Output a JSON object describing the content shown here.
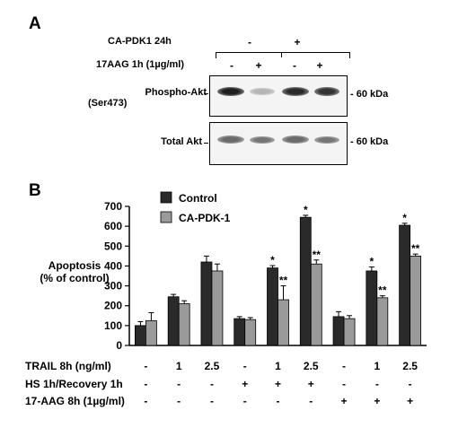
{
  "panel_a": {
    "letter": "A",
    "row1": {
      "label": "CA-PDK1 24h",
      "groups": [
        "-",
        "+"
      ]
    },
    "row2": {
      "label": "17AAG 1h (1µg/ml)",
      "values": [
        "-",
        "+",
        "-",
        "+"
      ]
    },
    "blots": [
      {
        "label_line1": "Phospho-Akt",
        "label_line2": "(Ser473)",
        "marker": "- 60 kDa",
        "band_intensity": [
          0.95,
          0.25,
          0.9,
          0.85
        ]
      },
      {
        "label_line1": "Total Akt",
        "label_line2": "",
        "marker": "- 60 kDa",
        "band_intensity": [
          0.6,
          0.55,
          0.6,
          0.55
        ]
      }
    ]
  },
  "panel_b": {
    "letter": "B",
    "colors": {
      "control": "#2a2a2a",
      "ca_pdk1": "#9a9a9a"
    },
    "treatments": [
      {
        "label": "TRAIL 8h (ng/ml)",
        "values": [
          "-",
          "1",
          "2.5",
          "-",
          "1",
          "2.5",
          "-",
          "1",
          "2.5"
        ]
      },
      {
        "label": "HS 1h/Recovery 1h",
        "values": [
          "-",
          "-",
          "-",
          "+",
          "+",
          "+",
          "-",
          "-",
          "-"
        ]
      },
      {
        "label": "17-AAG 8h (1µg/ml)",
        "values": [
          "-",
          "-",
          "-",
          "-",
          "-",
          "-",
          "+",
          "+",
          "+"
        ]
      }
    ]
  },
  "chart_data": {
    "type": "bar",
    "ylabel_line1": "Apoptosis",
    "ylabel_line2": "(% of control)",
    "ylim": [
      0,
      700
    ],
    "yticks": [
      0,
      100,
      200,
      300,
      400,
      500,
      600,
      700
    ],
    "categories": [
      "1",
      "2",
      "3",
      "4",
      "5",
      "6",
      "7",
      "8",
      "9"
    ],
    "series": [
      {
        "name": "Control",
        "values": [
          100,
          245,
          420,
          135,
          390,
          645,
          145,
          375,
          605
        ],
        "errors": [
          20,
          12,
          30,
          10,
          12,
          10,
          25,
          20,
          10
        ],
        "annotations": [
          "",
          "",
          "",
          "",
          "*",
          "*",
          "",
          "*",
          "*"
        ]
      },
      {
        "name": "CA-PDK-1",
        "values": [
          125,
          210,
          375,
          130,
          230,
          410,
          135,
          240,
          450
        ],
        "errors": [
          40,
          15,
          35,
          10,
          70,
          20,
          15,
          10,
          10
        ],
        "annotations": [
          "",
          "",
          "",
          "",
          "**",
          "**",
          "",
          "**",
          "**"
        ]
      }
    ],
    "legend_position": "top-left"
  }
}
